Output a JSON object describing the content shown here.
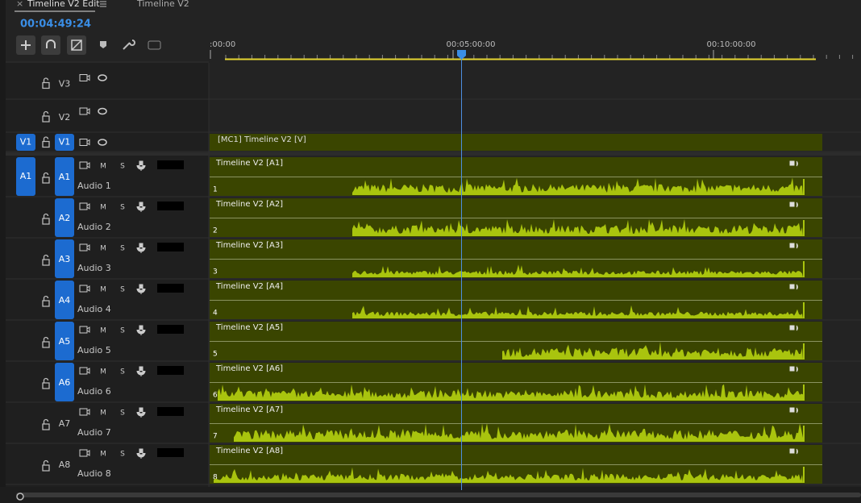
{
  "tabs": [
    {
      "label": "Timeline V2 Edit"
    },
    {
      "label": "Timeline V2"
    }
  ],
  "timecode": "00:04:49:24",
  "ruler": [
    ":00:00",
    "00:05:00:00",
    "00:10:00:00"
  ],
  "mute": "M",
  "solo": "S",
  "video_tracks": [
    {
      "label": "V3"
    },
    {
      "label": "V2"
    },
    {
      "label": "V1",
      "source": "V1",
      "clip": "[MC1] Timeline V2 [V]"
    }
  ],
  "audio_tracks": [
    {
      "label": "A1",
      "source": "A1",
      "name": "Audio 1",
      "clip": "Timeline V2 [A1]",
      "channel": 1
    },
    {
      "label": "A2",
      "name": "Audio 2",
      "clip": "Timeline V2 [A2]",
      "channel": 2
    },
    {
      "label": "A3",
      "name": "Audio 3",
      "clip": "Timeline V2 [A3]",
      "channel": 3
    },
    {
      "label": "A4",
      "name": "Audio 4",
      "clip": "Timeline V2 [A4]",
      "channel": 4
    },
    {
      "label": "A5",
      "name": "Audio 5",
      "clip": "Timeline V2 [A5]",
      "channel": 5
    },
    {
      "label": "A6",
      "name": "Audio 6",
      "clip": "Timeline V2 [A6]",
      "channel": 6
    },
    {
      "label": "A7",
      "name": "Audio 7",
      "clip": "Timeline V2 [A7]",
      "channel": 7
    },
    {
      "label": "A8",
      "name": "Audio 8",
      "clip": "Timeline V2 [A8]",
      "channel": 8
    }
  ]
}
